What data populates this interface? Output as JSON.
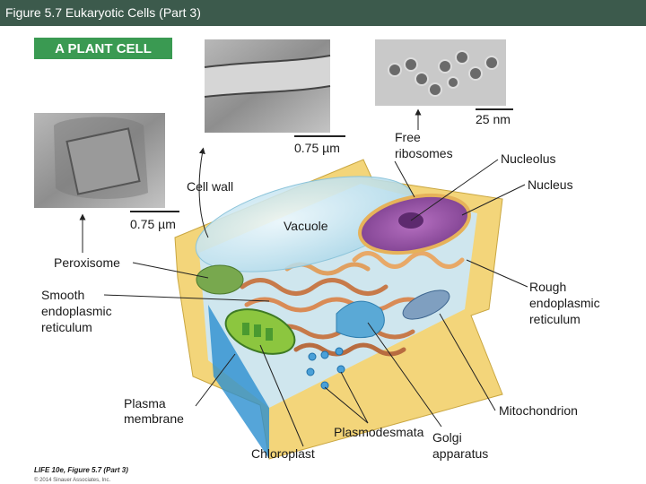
{
  "header": {
    "title": "Figure 5.7  Eukaryotic Cells (Part 3)"
  },
  "figure": {
    "heading": "A PLANT CELL",
    "scale_bars": [
      "0.75 µm",
      "0.75 µm",
      "25 nm"
    ],
    "labels": [
      {
        "lines": [
          "Free",
          "ribosomes"
        ]
      },
      {
        "lines": [
          "Nucleolus"
        ]
      },
      {
        "lines": [
          "Nucleus"
        ]
      },
      {
        "lines": [
          "Cell wall"
        ]
      },
      {
        "lines": [
          "Vacuole"
        ]
      },
      {
        "lines": [
          "Peroxisome"
        ]
      },
      {
        "lines": [
          "Smooth",
          "endoplasmic",
          "reticulum"
        ]
      },
      {
        "lines": [
          "Rough",
          "endoplasmic",
          "reticulum"
        ]
      },
      {
        "lines": [
          "Plasma",
          "membrane"
        ]
      },
      {
        "lines": [
          "Mitochondrion"
        ]
      },
      {
        "lines": [
          "Plasmodesmata"
        ]
      },
      {
        "lines": [
          "Chloroplast"
        ]
      },
      {
        "lines": [
          "Golgi",
          "apparatus"
        ]
      }
    ],
    "credit": {
      "source": "LIFE 10e, Figure 5.7 (Part 3)",
      "copyright": "© 2014 Sinauer Associates, Inc."
    }
  }
}
